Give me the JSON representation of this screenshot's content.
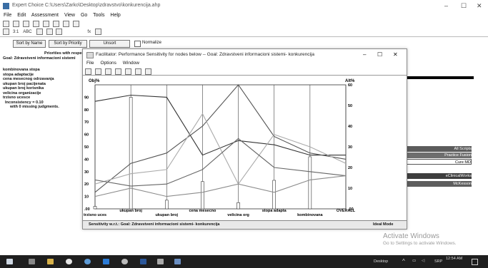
{
  "window": {
    "title": "Expert Choice    C:\\Users\\Zarko\\Desktop\\zdravstvo\\konkurencija.ahp",
    "min": "–",
    "max": "☐",
    "close": "✕"
  },
  "menu": [
    "File",
    "Edit",
    "Assessment",
    "View",
    "Go",
    "Tools",
    "Help"
  ],
  "toolbar2_labels": [
    "3:1",
    "ABC",
    "fx"
  ],
  "sort_buttons": {
    "by_name": "Sort by Name",
    "by_priority": "Sort by Priority",
    "unsort": "Unsort",
    "normalize": "Normalize"
  },
  "left_panel": {
    "header1": "Priorities with respect to",
    "header2": "Goal: Zdravstveni informacioni sistemi",
    "items": [
      "kombinovana stopa",
      "stopa adaptacije",
      "cena mesecnog odrzavanja",
      "ukupan broj pacijenata",
      "ukupan broj korisnika",
      "velicina organizacije",
      "trzisno ucesce"
    ],
    "inconsistency": "Inconsistency = 0.10",
    "missing": "with 0  missing judgments."
  },
  "dialog": {
    "title": "Facilitator: Performance Sensitivity for nodes below -- Goal: Zdravstveni informacioni sistemi- konkurencija",
    "menu": [
      "File",
      "Options",
      "Window"
    ],
    "status_left": "Sensitivity w.r.t.: Goal: Zdravstveni informacioni sistemi- konkurencija",
    "status_right": "Ideal Mode"
  },
  "chart_data": {
    "type": "line",
    "left_axis": {
      "label": "Obj%",
      "ticks": [
        ".00",
        "10",
        "20",
        "30",
        "40",
        "50",
        "60",
        "70",
        "80",
        "90"
      ],
      "ylim": [
        0,
        100
      ]
    },
    "right_axis": {
      "label": "Alt%",
      "ticks": [
        ".00",
        "10",
        "20",
        "30",
        "40",
        "50",
        "60"
      ],
      "ylim": [
        0,
        60
      ]
    },
    "categories": [
      "trzisno uces",
      "ukupan broj",
      "ukupan broj",
      "cena mesecno",
      "velicina org",
      "stopa adapta",
      "kombinovana",
      "OVERALL"
    ],
    "objective_bars": [
      2,
      90,
      7,
      22,
      5,
      23,
      42,
      0
    ],
    "series": [
      {
        "name": "All Scripts",
        "color": "#333333",
        "values": [
          52,
          55,
          54,
          26,
          33,
          31,
          26,
          26
        ]
      },
      {
        "name": "Practice Fusion",
        "color": "#555555",
        "values": [
          8,
          22,
          27,
          40,
          60,
          35,
          27,
          24
        ]
      },
      {
        "name": "Cure MD",
        "color": "#aaaaaa",
        "values": [
          12,
          17,
          19,
          46,
          12,
          36,
          30,
          22
        ]
      },
      {
        "name": "eClinicalWorks",
        "color": "#666666",
        "values": [
          14,
          11,
          12,
          19,
          34,
          20,
          18,
          16
        ]
      },
      {
        "name": "McKesson",
        "color": "#8c8c8c",
        "values": [
          6,
          10,
          6,
          8,
          12,
          8,
          14,
          16
        ]
      }
    ]
  },
  "legend": [
    {
      "name": "All Scripts",
      "bg": "#5c5c5c"
    },
    {
      "name": "Practice Fusion",
      "bg": "#6e6e6e"
    },
    {
      "name": "Cure MD",
      "bg": "#ffffff"
    },
    {
      "name": "eClinicalWorks",
      "bg": "#3e3e3e"
    },
    {
      "name": "McKesson",
      "bg": "#5e5e5e"
    }
  ],
  "activate": {
    "line1": "Activate Windows",
    "line2": "Go to Settings to activate Windows."
  },
  "taskbar": {
    "desktop": "Desktop",
    "lang": "SRP",
    "time": "12:54 AM"
  }
}
